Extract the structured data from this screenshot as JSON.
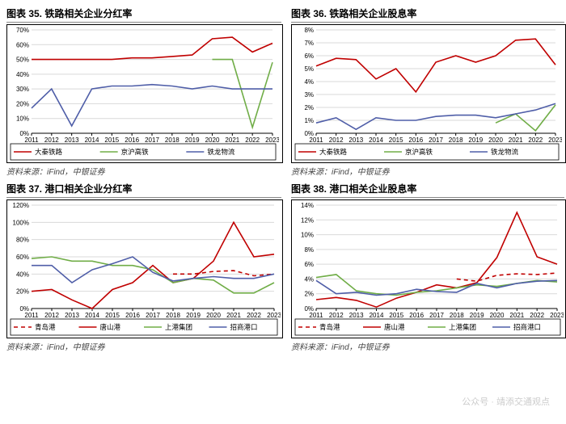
{
  "watermark": "公众号 · 靖添交通观点",
  "charts": [
    {
      "title": "图表 35. 铁路相关企业分红率",
      "source": "资料来源：iFind，中银证券",
      "type": "line",
      "ylim": [
        0,
        70
      ],
      "ytick_step": 10,
      "ysuffix": "%",
      "categories": [
        "2011",
        "2012",
        "2013",
        "2014",
        "2015",
        "2016",
        "2017",
        "2018",
        "2019",
        "2020",
        "2021",
        "2022",
        "2023"
      ],
      "series": [
        {
          "name": "大秦铁路",
          "color": "#c00000",
          "dash": "",
          "marker": "none",
          "values": [
            50,
            50,
            50,
            50,
            50,
            51,
            51,
            52,
            53,
            64,
            65,
            55,
            61
          ]
        },
        {
          "name": "京沪高铁",
          "color": "#70ad47",
          "dash": "",
          "marker": "none",
          "values": [
            null,
            null,
            null,
            null,
            null,
            null,
            null,
            null,
            null,
            50,
            50,
            4,
            48
          ]
        },
        {
          "name": "铁龙物流",
          "color": "#4f5ea8",
          "dash": "",
          "marker": "none",
          "values": [
            17,
            30,
            5,
            30,
            32,
            32,
            33,
            32,
            30,
            32,
            30,
            30,
            30
          ]
        }
      ],
      "grid_color": "#d9d9d9",
      "background_color": "#ffffff",
      "title_fontsize": 12,
      "label_fontsize": 8
    },
    {
      "title": "图表 36. 铁路相关企业股息率",
      "source": "资料来源：iFind，中银证券",
      "type": "line",
      "ylim": [
        0,
        8
      ],
      "ytick_step": 1,
      "ysuffix": "%",
      "categories": [
        "2011",
        "2012",
        "2013",
        "2014",
        "2015",
        "2016",
        "2017",
        "2018",
        "2019",
        "2020",
        "2021",
        "2022",
        "2023"
      ],
      "series": [
        {
          "name": "大秦铁路",
          "color": "#c00000",
          "dash": "",
          "marker": "none",
          "values": [
            5.2,
            5.8,
            5.7,
            4.2,
            5.0,
            3.2,
            5.5,
            6.0,
            5.5,
            6.0,
            7.2,
            7.3,
            5.3
          ]
        },
        {
          "name": "京沪高铁",
          "color": "#70ad47",
          "dash": "",
          "marker": "none",
          "values": [
            null,
            null,
            null,
            null,
            null,
            null,
            null,
            null,
            null,
            0.8,
            1.5,
            0.2,
            2.2
          ]
        },
        {
          "name": "铁龙物流",
          "color": "#4f5ea8",
          "dash": "",
          "marker": "none",
          "values": [
            0.8,
            1.2,
            0.3,
            1.2,
            1.0,
            1.0,
            1.3,
            1.4,
            1.4,
            1.2,
            1.5,
            1.8,
            2.3
          ]
        }
      ],
      "grid_color": "#d9d9d9",
      "background_color": "#ffffff",
      "title_fontsize": 12,
      "label_fontsize": 8
    },
    {
      "title": "图表 37. 港口相关企业分红率",
      "source": "资料来源：iFind，中银证券",
      "type": "line",
      "ylim": [
        0,
        120
      ],
      "ytick_step": 20,
      "ysuffix": "%",
      "categories": [
        "2011",
        "2012",
        "2013",
        "2014",
        "2015",
        "2016",
        "2017",
        "2018",
        "2019",
        "2020",
        "2021",
        "2022",
        "2023"
      ],
      "series": [
        {
          "name": "青岛港",
          "color": "#c00000",
          "dash": "5,4",
          "marker": "none",
          "values": [
            null,
            null,
            null,
            null,
            null,
            null,
            null,
            40,
            40,
            43,
            44,
            38,
            40
          ]
        },
        {
          "name": "唐山港",
          "color": "#c00000",
          "dash": "",
          "marker": "none",
          "values": [
            20,
            22,
            10,
            0,
            22,
            30,
            50,
            30,
            35,
            55,
            100,
            60,
            63
          ]
        },
        {
          "name": "上港集团",
          "color": "#70ad47",
          "dash": "",
          "marker": "none",
          "values": [
            58,
            60,
            55,
            55,
            50,
            50,
            45,
            30,
            35,
            33,
            18,
            18,
            30
          ]
        },
        {
          "name": "招商港口",
          "color": "#4f5ea8",
          "dash": "",
          "marker": "none",
          "values": [
            50,
            50,
            30,
            45,
            52,
            60,
            42,
            32,
            35,
            37,
            35,
            35,
            40
          ]
        }
      ],
      "grid_color": "#d9d9d9",
      "background_color": "#ffffff",
      "title_fontsize": 12,
      "label_fontsize": 8
    },
    {
      "title": "图表 38. 港口相关企业股息率",
      "source": "资料来源：iFind，中银证券",
      "type": "line",
      "ylim": [
        0,
        14
      ],
      "ytick_step": 2,
      "ysuffix": "%",
      "categories": [
        "2011",
        "2012",
        "2013",
        "2014",
        "2015",
        "2016",
        "2017",
        "2018",
        "2019",
        "2020",
        "2021",
        "2022",
        "2023"
      ],
      "series": [
        {
          "name": "青岛港",
          "color": "#c00000",
          "dash": "5,4",
          "marker": "none",
          "values": [
            null,
            null,
            null,
            null,
            null,
            null,
            null,
            4.0,
            3.7,
            4.5,
            4.7,
            4.6,
            4.8
          ]
        },
        {
          "name": "唐山港",
          "color": "#c00000",
          "dash": "",
          "marker": "none",
          "values": [
            1.2,
            1.5,
            1.1,
            0.2,
            1.4,
            2.2,
            3.2,
            2.8,
            3.5,
            6.9,
            13.0,
            7.0,
            6.0
          ]
        },
        {
          "name": "上港集团",
          "color": "#70ad47",
          "dash": "",
          "marker": "none",
          "values": [
            4.2,
            4.6,
            2.4,
            2.0,
            1.8,
            2.2,
            2.4,
            2.8,
            3.2,
            3.0,
            3.4,
            3.8,
            3.6
          ]
        },
        {
          "name": "招商港口",
          "color": "#4f5ea8",
          "dash": "",
          "marker": "none",
          "values": [
            3.8,
            2.0,
            2.2,
            1.8,
            2.0,
            2.6,
            2.3,
            2.2,
            3.4,
            2.8,
            3.4,
            3.7,
            3.8
          ]
        }
      ],
      "grid_color": "#d9d9d9",
      "background_color": "#ffffff",
      "title_fontsize": 12,
      "label_fontsize": 8
    }
  ]
}
